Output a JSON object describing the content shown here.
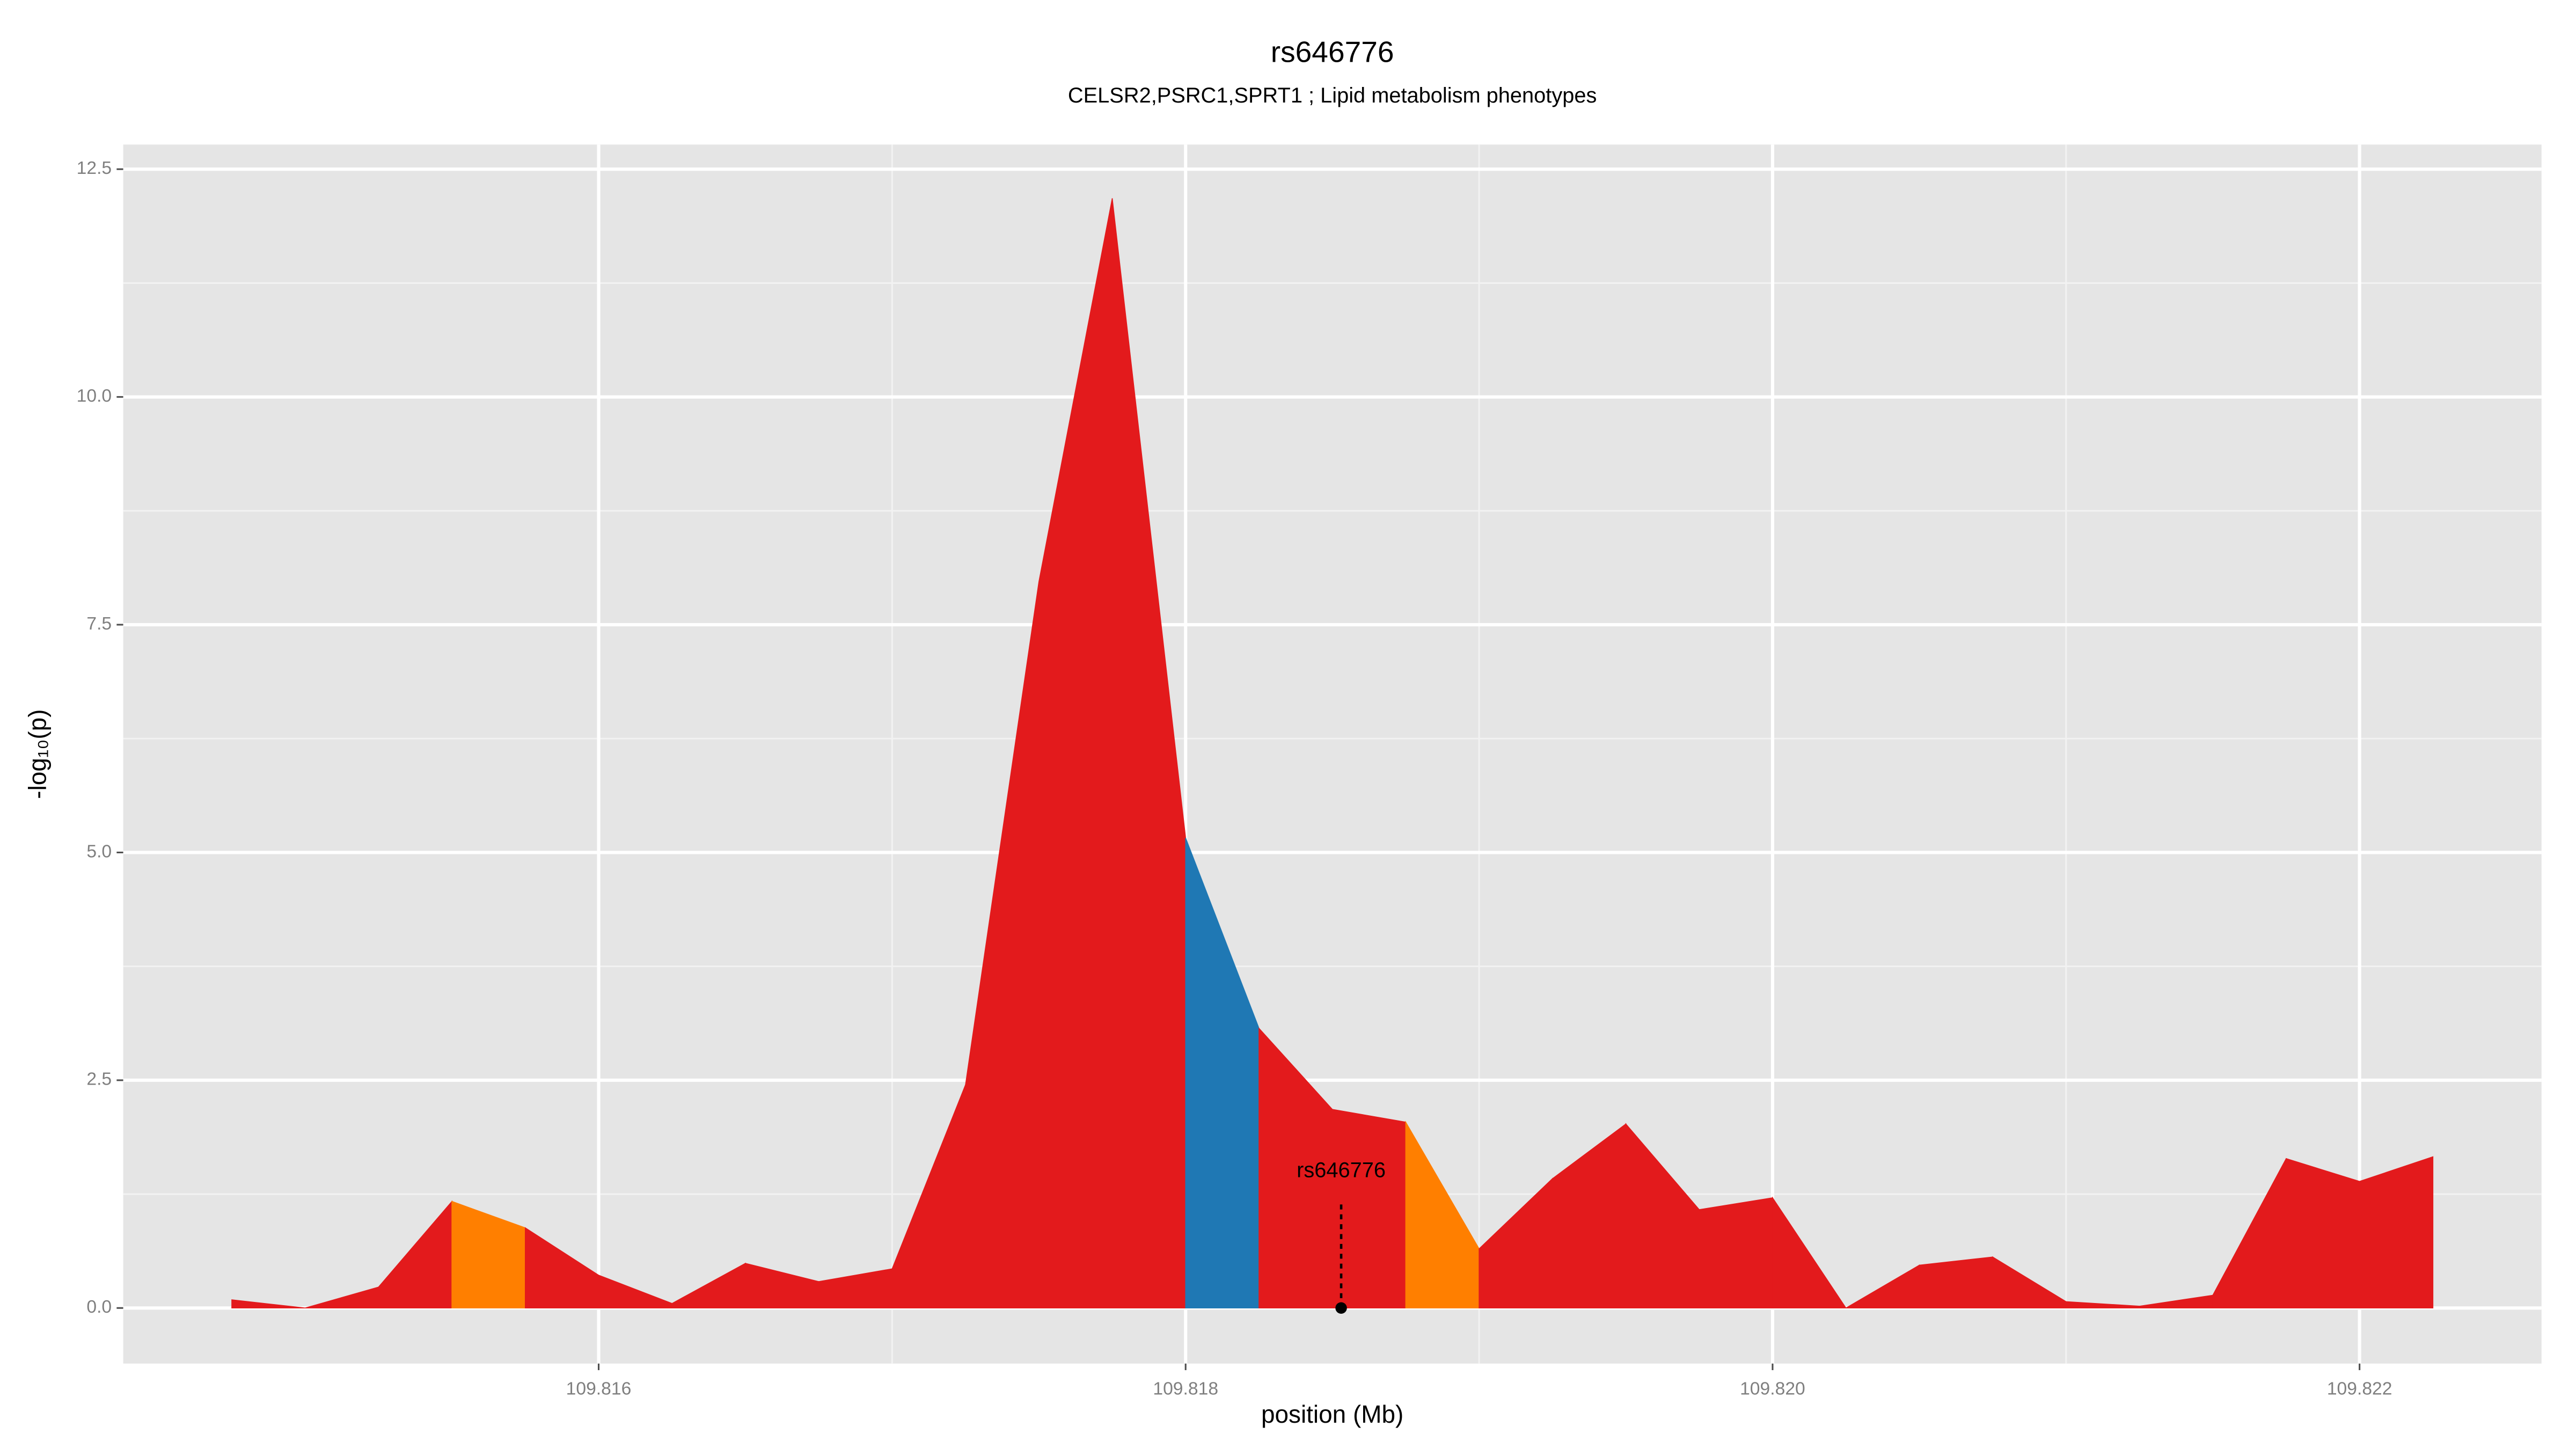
{
  "chart_data": {
    "type": "area",
    "title": "rs646776",
    "subtitle": "CELSR2,PSRC1,SPRT1 ; Lipid metabolism phenotypes",
    "xlabel": "position (Mb)",
    "ylabel": "-log₁₀(p)",
    "x": [
      109.81475,
      109.815,
      109.81525,
      109.8155,
      109.81575,
      109.816,
      109.81625,
      109.8165,
      109.81675,
      109.817,
      109.81725,
      109.8175,
      109.81775,
      109.818,
      109.81825,
      109.8185,
      109.81875,
      109.819,
      109.81925,
      109.8195,
      109.81975,
      109.82,
      109.82025,
      109.8205,
      109.82075,
      109.821,
      109.82125,
      109.8215,
      109.82175,
      109.822,
      109.82225
    ],
    "values": [
      0.09,
      0.0,
      0.23,
      1.17,
      0.88,
      0.36,
      0.05,
      0.49,
      0.29,
      0.43,
      2.45,
      7.97,
      12.18,
      5.16,
      3.07,
      2.18,
      2.04,
      0.65,
      1.42,
      2.02,
      1.08,
      1.21,
      0.0,
      0.47,
      0.56,
      0.07,
      0.02,
      0.14,
      1.64,
      1.39,
      1.66
    ],
    "colors": [
      "#e31a1c",
      "#e31a1c",
      "#e31a1c",
      "#ff7f00",
      "#e31a1c",
      "#e31a1c",
      "#e31a1c",
      "#e31a1c",
      "#e31a1c",
      "#e31a1c",
      "#e31a1c",
      "#e31a1c",
      "#e31a1c",
      "#1f78b4",
      "#e31a1c",
      "#e31a1c",
      "#ff7f00",
      "#e31a1c",
      "#e31a1c",
      "#e31a1c",
      "#e31a1c",
      "#e31a1c",
      "#e31a1c",
      "#e31a1c",
      "#e31a1c",
      "#e31a1c",
      "#e31a1c",
      "#e31a1c",
      "#e31a1c",
      "#e31a1c",
      "#e31a1c"
    ],
    "annotation": {
      "text": "rs646776",
      "x": 109.81853,
      "y": 0
    },
    "xlim": [
      109.81438,
      109.82262
    ],
    "ylim": [
      -0.61,
      12.77
    ],
    "xticks": [
      109.816,
      109.818,
      {
        "value": 109.82,
        "label": "109.820"
      },
      109.822
    ],
    "yticks": [
      {
        "value": 0,
        "label": "0.0"
      },
      2.5,
      {
        "value": 5,
        "label": "5.0"
      },
      7.5,
      {
        "value": 10,
        "label": "10.0"
      },
      12.5
    ],
    "grid": true
  }
}
